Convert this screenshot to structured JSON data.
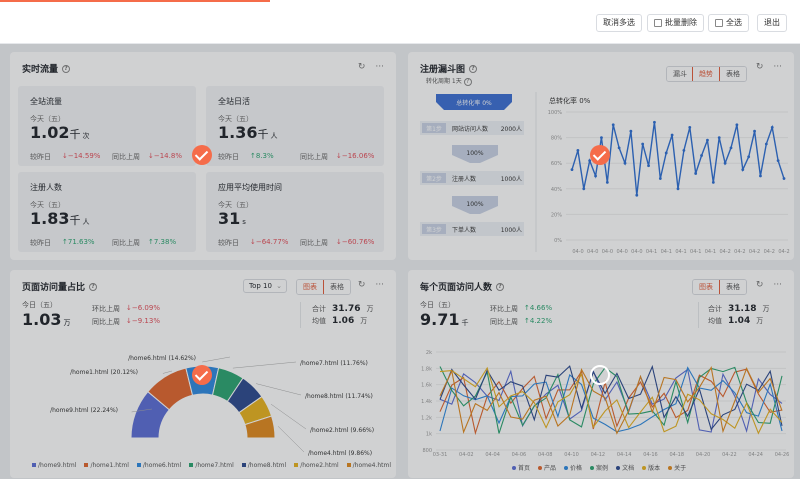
{
  "toolbar": {
    "cancel_multi": "取消多选",
    "batch_delete": "批量删除",
    "select_all": "全选",
    "exit": "退出"
  },
  "realtime": {
    "title": "实时流量",
    "tiles": [
      {
        "name": "全站流量",
        "sub": "今天（五）",
        "value": "1.02",
        "unit": "千",
        "unit2": "次",
        "cmp1_label": "较昨日",
        "cmp1": "↓−14.59%",
        "cmp1_dir": "down",
        "cmp2_label": "同比上周",
        "cmp2": "↓−14.8%",
        "cmp2_dir": "down"
      },
      {
        "name": "全站日活",
        "sub": "今天（五）",
        "value": "1.36",
        "unit": "千",
        "unit2": "人",
        "cmp1_label": "较昨日",
        "cmp1": "↑8.3%",
        "cmp1_dir": "up",
        "cmp2_label": "同比上周",
        "cmp2": "↓−16.06%",
        "cmp2_dir": "down"
      },
      {
        "name": "注册人数",
        "sub": "今天（五）",
        "value": "1.83",
        "unit": "千",
        "unit2": "人",
        "cmp1_label": "较昨日",
        "cmp1": "↑71.63%",
        "cmp1_dir": "up",
        "cmp2_label": "同比上周",
        "cmp2": "↑7.38%",
        "cmp2_dir": "up"
      },
      {
        "name": "应用平均使用时间",
        "sub": "今天（五）",
        "value": "31",
        "unit": "",
        "unit2": "s",
        "cmp1_label": "较昨日",
        "cmp1": "↓−64.77%",
        "cmp1_dir": "down",
        "cmp2_label": "同比上周",
        "cmp2": "↓−60.76%",
        "cmp2_dir": "down"
      }
    ]
  },
  "funnel": {
    "title": "注册漏斗图",
    "period": "转化周期 1天",
    "tabs": [
      "漏斗",
      "趋势",
      "表格"
    ],
    "active_tab": 1,
    "total_label": "总转化率 0%",
    "steps": [
      {
        "step": "第1步",
        "name": "网站访问人数",
        "count": "2000人"
      },
      {
        "step": "第2步",
        "name": "注册人数",
        "count": "1000人"
      },
      {
        "step": "第3步",
        "name": "下单人数",
        "count": "1000人"
      }
    ],
    "rates": [
      "100%",
      "100%"
    ],
    "trend_title": "总转化率 0%",
    "y_ticks": [
      "100%",
      "80%",
      "60%",
      "40%",
      "20%",
      "0%"
    ],
    "x_ticks": [
      "04-0",
      "04-0",
      "04-0",
      "04-0",
      "04-0",
      "04-1",
      "04-1",
      "04-1",
      "04-1",
      "04-1",
      "04-2",
      "04-2",
      "04-2",
      "04-2",
      "04-2"
    ],
    "trend_values": [
      55,
      70,
      40,
      62,
      50,
      80,
      45,
      90,
      72,
      60,
      85,
      35,
      75,
      58,
      92,
      48,
      68,
      82,
      40,
      70,
      88,
      52,
      66,
      78,
      45,
      80,
      60,
      72,
      90,
      55,
      65,
      85,
      50,
      75,
      88,
      62,
      48
    ]
  },
  "page_share": {
    "title": "页面访问量占比",
    "select": "Top 10",
    "tabs": [
      "图表",
      "表格"
    ],
    "today_label": "今日（五）",
    "today_value": "1.03",
    "today_unit": "万",
    "cmp1_label": "环比上周",
    "cmp1": "↓−6.09%",
    "cmp2_label": "同比上周",
    "cmp2": "↓−9.13%",
    "total_label": "合计",
    "total_value": "31.76",
    "total_unit": "万",
    "avg_label": "均值",
    "avg_value": "1.06",
    "avg_unit": "万",
    "slices": [
      {
        "name": "/home9.html",
        "pct": 22.24,
        "label": "/home9.html (22.24%)",
        "color": "#5b6ed6"
      },
      {
        "name": "/home1.html",
        "pct": 20.12,
        "label": "/home1.html (20.12%)",
        "color": "#e0662e"
      },
      {
        "name": "/home6.html",
        "pct": 14.62,
        "label": "/home6.html (14.62%)",
        "color": "#2d8ae0"
      },
      {
        "name": "/home7.html",
        "pct": 11.76,
        "label": "/home7.html (11.76%)",
        "color": "#2ba471"
      },
      {
        "name": "/home8.html",
        "pct": 11.74,
        "label": "/home8.html (11.74%)",
        "color": "#2c4a8f"
      },
      {
        "name": "/home2.html",
        "pct": 9.66,
        "label": "/home2.html (9.66%)",
        "color": "#e8b21e"
      },
      {
        "name": "/home4.html",
        "pct": 9.86,
        "label": "/home4.html (9.86%)",
        "color": "#e08a1e"
      }
    ]
  },
  "page_visitors": {
    "title": "每个页面访问人数",
    "tabs": [
      "图表",
      "表格"
    ],
    "today_label": "今日（五）",
    "today_value": "9.71",
    "today_unit": "千",
    "cmp1_label": "环比上周",
    "cmp1": "↑4.66%",
    "cmp2_label": "同比上周",
    "cmp2": "↑4.22%",
    "total_label": "合计",
    "total_value": "31.18",
    "total_unit": "万",
    "avg_label": "均值",
    "avg_value": "1.04",
    "avg_unit": "万",
    "y_ticks": [
      "2k",
      "1.8k",
      "1.6k",
      "1.4k",
      "1.2k",
      "1k",
      "800"
    ],
    "x_ticks": [
      "03-31",
      "04-02",
      "04-04",
      "04-06",
      "04-08",
      "04-10",
      "04-12",
      "04-14",
      "04-16",
      "04-18",
      "04-20",
      "04-22",
      "04-24",
      "04-26"
    ],
    "legend": [
      {
        "name": "首页",
        "color": "#5b6ed6"
      },
      {
        "name": "产品",
        "color": "#e0662e"
      },
      {
        "name": "价格",
        "color": "#2d8ae0"
      },
      {
        "name": "案例",
        "color": "#2ba471"
      },
      {
        "name": "文档",
        "color": "#2c4a8f"
      },
      {
        "name": "版本",
        "color": "#e8b21e"
      },
      {
        "name": "关于",
        "color": "#e08a1e"
      }
    ]
  }
}
